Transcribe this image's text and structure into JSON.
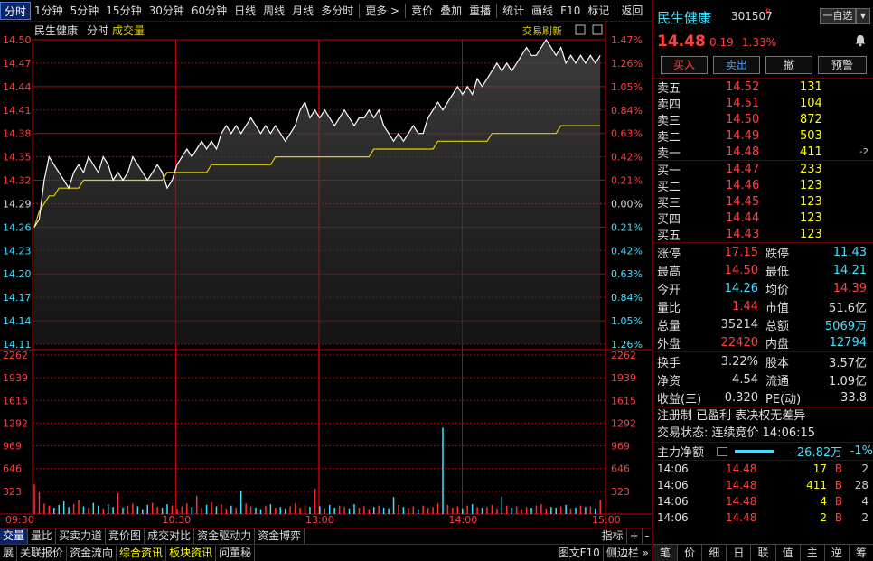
{
  "toolbar": {
    "items": [
      "分时",
      "1分钟",
      "5分钟",
      "15分钟",
      "30分钟",
      "60分钟",
      "日线",
      "周线",
      "月线",
      "多分时",
      "更多 >",
      "竞价",
      "叠加",
      "重播",
      "统计",
      "画线",
      "F10",
      "标记",
      "返回"
    ]
  },
  "chart": {
    "stock_name": "民生健康",
    "mode": "分时",
    "indicator": "成交量",
    "refresh_label": "交易刷新",
    "price_ticks": [
      "14.50",
      "14.47",
      "14.44",
      "14.41",
      "14.38",
      "14.35",
      "14.32",
      "14.29",
      "14.26",
      "14.23",
      "14.20",
      "14.17",
      "14.14",
      "14.11"
    ],
    "pct_ticks": [
      "1.47%",
      "1.26%",
      "1.05%",
      "0.84%",
      "0.63%",
      "0.42%",
      "0.21%",
      "0.00%",
      "0.21%",
      "0.42%",
      "0.63%",
      "0.84%",
      "1.05%",
      "1.26%"
    ],
    "vol_ticks": [
      "2262",
      "1939",
      "1615",
      "1292",
      "969",
      "646",
      "323"
    ],
    "time_ticks": [
      "09:30",
      "10:30",
      "13:00",
      "14:00",
      "15:00"
    ],
    "colors": {
      "up": "#ff3030",
      "down": "#40e0ff",
      "avg": "#e0d000",
      "price": "#ffffff",
      "grid": "#c00000"
    }
  },
  "chart_data": {
    "type": "line",
    "price_range": [
      14.11,
      14.5
    ],
    "prev_close": 14.29,
    "volume_range": [
      0,
      2262
    ],
    "price_series": [
      14.26,
      14.27,
      14.32,
      14.35,
      14.34,
      14.33,
      14.32,
      14.31,
      14.33,
      14.34,
      14.33,
      14.35,
      14.34,
      14.33,
      14.35,
      14.34,
      14.32,
      14.33,
      14.32,
      14.33,
      14.35,
      14.34,
      14.33,
      14.32,
      14.33,
      14.34,
      14.33,
      14.31,
      14.32,
      14.34,
      14.35,
      14.36,
      14.35,
      14.36,
      14.37,
      14.36,
      14.37,
      14.36,
      14.38,
      14.39,
      14.38,
      14.39,
      14.38,
      14.39,
      14.4,
      14.39,
      14.38,
      14.39,
      14.38,
      14.39,
      14.38,
      14.37,
      14.38,
      14.39,
      14.41,
      14.42,
      14.4,
      14.41,
      14.4,
      14.41,
      14.4,
      14.39,
      14.4,
      14.41,
      14.4,
      14.39,
      14.4,
      14.4,
      14.41,
      14.4,
      14.41,
      14.39,
      14.38,
      14.37,
      14.38,
      14.37,
      14.38,
      14.39,
      14.38,
      14.38,
      14.4,
      14.41,
      14.42,
      14.41,
      14.42,
      14.43,
      14.44,
      14.43,
      14.44,
      14.43,
      14.45,
      14.44,
      14.45,
      14.46,
      14.47,
      14.46,
      14.47,
      14.46,
      14.47,
      14.48,
      14.49,
      14.48,
      14.48,
      14.49,
      14.5,
      14.49,
      14.48,
      14.49,
      14.47,
      14.48,
      14.47,
      14.48,
      14.47,
      14.48,
      14.47,
      14.48
    ],
    "avg_series": [
      14.26,
      14.28,
      14.29,
      14.3,
      14.3,
      14.31,
      14.31,
      14.31,
      14.31,
      14.31,
      14.32,
      14.32,
      14.32,
      14.32,
      14.32,
      14.32,
      14.32,
      14.32,
      14.32,
      14.32,
      14.32,
      14.32,
      14.32,
      14.32,
      14.32,
      14.32,
      14.32,
      14.33,
      14.33,
      14.33,
      14.33,
      14.33,
      14.33,
      14.33,
      14.33,
      14.33,
      14.34,
      14.34,
      14.34,
      14.34,
      14.34,
      14.34,
      14.34,
      14.34,
      14.34,
      14.34,
      14.34,
      14.34,
      14.34,
      14.35,
      14.35,
      14.35,
      14.35,
      14.35,
      14.35,
      14.35,
      14.35,
      14.35,
      14.35,
      14.35,
      14.35,
      14.35,
      14.35,
      14.35,
      14.35,
      14.35,
      14.35,
      14.35,
      14.35,
      14.36,
      14.36,
      14.36,
      14.36,
      14.36,
      14.36,
      14.36,
      14.36,
      14.36,
      14.36,
      14.36,
      14.36,
      14.36,
      14.37,
      14.37,
      14.37,
      14.37,
      14.37,
      14.37,
      14.37,
      14.37,
      14.37,
      14.37,
      14.37,
      14.38,
      14.38,
      14.38,
      14.38,
      14.38,
      14.38,
      14.38,
      14.38,
      14.38,
      14.38,
      14.38,
      14.38,
      14.38,
      14.38,
      14.39,
      14.39,
      14.39,
      14.39,
      14.39,
      14.39,
      14.39,
      14.39,
      14.39
    ],
    "volume_series": [
      420,
      310,
      150,
      120,
      90,
      130,
      180,
      100,
      140,
      200,
      110,
      90,
      160,
      120,
      80,
      140,
      100,
      300,
      90,
      120,
      150,
      110,
      70,
      130,
      160,
      100,
      90,
      140,
      120,
      80,
      110,
      150,
      100,
      260,
      90,
      130,
      170,
      110,
      140,
      80,
      120,
      90,
      330,
      150,
      110,
      90,
      70,
      120,
      140,
      90,
      100,
      80,
      110,
      150,
      90,
      120,
      100,
      360,
      110,
      80,
      130,
      90,
      120,
      100,
      80,
      140,
      90,
      110,
      70,
      100,
      120,
      90,
      80,
      240,
      130,
      100,
      90,
      110,
      70,
      120,
      90,
      100,
      150,
      1230,
      130,
      90,
      110,
      80,
      120,
      140,
      100,
      90,
      100,
      130,
      80,
      250,
      120,
      90,
      110,
      70,
      100,
      90,
      120,
      140,
      80,
      100,
      90,
      110,
      130,
      80,
      90,
      120,
      100,
      110,
      80,
      200
    ],
    "xlabel": "",
    "ylabel": ""
  },
  "panel": {
    "name": "民生健康",
    "code": "301507",
    "flag": "R",
    "self_btn": "一自选",
    "drop_btn": "▼",
    "price": "14.48",
    "change": "0.19",
    "pct": "1.33%",
    "actions": {
      "buy": "买入",
      "sell": "卖出",
      "cancel": "撤",
      "warn": "预警"
    },
    "asks": [
      {
        "label": "卖五",
        "price": "14.52",
        "vol": "131",
        "delta": ""
      },
      {
        "label": "卖四",
        "price": "14.51",
        "vol": "104",
        "delta": ""
      },
      {
        "label": "卖三",
        "price": "14.50",
        "vol": "872",
        "delta": ""
      },
      {
        "label": "卖二",
        "price": "14.49",
        "vol": "503",
        "delta": ""
      },
      {
        "label": "卖一",
        "price": "14.48",
        "vol": "411",
        "delta": "-2"
      }
    ],
    "bids": [
      {
        "label": "买一",
        "price": "14.47",
        "vol": "233",
        "delta": ""
      },
      {
        "label": "买二",
        "price": "14.46",
        "vol": "123",
        "delta": ""
      },
      {
        "label": "买三",
        "price": "14.45",
        "vol": "123",
        "delta": ""
      },
      {
        "label": "买四",
        "price": "14.44",
        "vol": "123",
        "delta": ""
      },
      {
        "label": "买五",
        "price": "14.43",
        "vol": "123",
        "delta": ""
      }
    ],
    "stats": [
      {
        "l1": "涨停",
        "v1": "17.15",
        "c1": "#ff4040",
        "l2": "跌停",
        "v2": "11.43",
        "c2": "#40e0ff"
      },
      {
        "l1": "最高",
        "v1": "14.50",
        "c1": "#ff4040",
        "l2": "最低",
        "v2": "14.21",
        "c2": "#40e0ff"
      },
      {
        "l1": "今开",
        "v1": "14.26",
        "c1": "#40e0ff",
        "l2": "均价",
        "v2": "14.39",
        "c2": "#ff4040"
      },
      {
        "l1": "量比",
        "v1": "1.44",
        "c1": "#ff4040",
        "l2": "市值",
        "v2": "51.6亿",
        "c2": "#dddddd"
      },
      {
        "l1": "总量",
        "v1": "35214",
        "c1": "#dddddd",
        "l2": "总额",
        "v2": "5069万",
        "c2": "#40e0ff"
      },
      {
        "l1": "外盘",
        "v1": "22420",
        "c1": "#ff4040",
        "l2": "内盘",
        "v2": "12794",
        "c2": "#40e0ff"
      }
    ],
    "stats2": [
      {
        "l1": "换手",
        "v1": "3.22%",
        "l2": "股本",
        "v2": "3.57亿"
      },
      {
        "l1": "净资",
        "v1": "4.54",
        "l2": "流通",
        "v2": "1.09亿"
      },
      {
        "l1": "收益(三)",
        "v1": "0.320",
        "l2": "PE(动)",
        "v2": "33.8"
      }
    ],
    "info1": "注册制 已盈利 表决权无差异",
    "info2": "交易状态: 连续竞价 14:06:15",
    "net_label": "主力净额",
    "net_value": "-26.82万",
    "net_pct": "-1%",
    "ticks": [
      {
        "time": "14:06",
        "price": "14.48",
        "vol": "17",
        "side": "B",
        "num": "2"
      },
      {
        "time": "14:06",
        "price": "14.48",
        "vol": "411",
        "side": "B",
        "num": "28"
      },
      {
        "time": "14:06",
        "price": "14.48",
        "vol": "4",
        "side": "B",
        "num": "4"
      },
      {
        "time": "14:06",
        "price": "14.48",
        "vol": "2",
        "side": "B",
        "num": "2"
      }
    ],
    "side_tabs": [
      "笔",
      "价",
      "细",
      "日",
      "联",
      "值",
      "主",
      "逆",
      "筹"
    ]
  },
  "tabs1": {
    "items": [
      "交量",
      "量比",
      "买卖力道",
      "竞价图",
      "成交对比",
      "资金驱动力",
      "资金博弈"
    ],
    "right": [
      "指标",
      "+",
      "-"
    ]
  },
  "tabs2": {
    "items": [
      "展",
      "关联报价",
      "资金流向",
      "综合资讯",
      "板块资讯",
      "问董秘"
    ],
    "right": [
      "图文F10",
      "侧边栏 »"
    ]
  }
}
